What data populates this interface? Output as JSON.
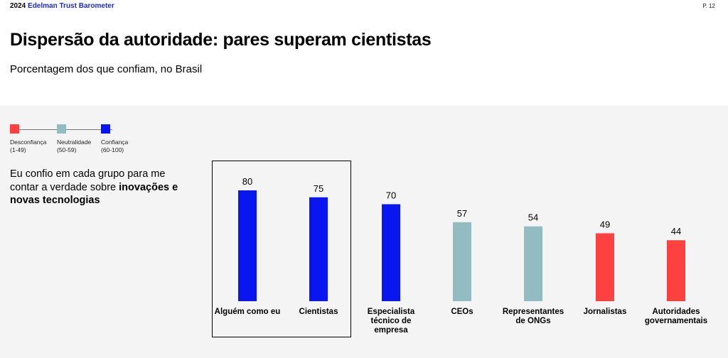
{
  "header": {
    "year": "2024",
    "brand": "Edelman Trust Barometer",
    "page": "P. 12"
  },
  "title": "Dispersão da autoridade: pares superam cientistas",
  "subtitle": "Porcentagem dos que confiam, no Brasil",
  "legend": [
    {
      "label": "Desconfiança",
      "range": "(1-49)",
      "color": "#fd4040"
    },
    {
      "label": "Neutralidade",
      "range": "(50-59)",
      "color": "#92bcc2"
    },
    {
      "label": "Confiança",
      "range": "(60-100)",
      "color": "#0a16f0"
    }
  ],
  "question": {
    "prefix": "Eu confio em cada grupo para me contar a verdade sobre ",
    "emphasis": "inovações e novas tecnologias"
  },
  "chart_data": {
    "type": "bar",
    "categories": [
      "Alguém como eu",
      "Cientistas",
      "Especialista técnico de empresa",
      "CEOs",
      "Representantes de ONGs",
      "Jornalistas",
      "Autoridades governamentais"
    ],
    "category_lines": [
      [
        "Alguém como eu"
      ],
      [
        "Cientistas"
      ],
      [
        "Especialista",
        "técnico de",
        "empresa"
      ],
      [
        "CEOs"
      ],
      [
        "Representantes",
        "de ONGs"
      ],
      [
        "Jornalistas"
      ],
      [
        "Autoridades",
        "governamentais"
      ]
    ],
    "values": [
      80,
      75,
      70,
      57,
      54,
      49,
      44
    ],
    "colors": [
      "#0a16f0",
      "#0a16f0",
      "#0a16f0",
      "#92bcc2",
      "#92bcc2",
      "#fd4040",
      "#fd4040"
    ],
    "ylim": [
      0,
      100
    ],
    "highlighted": [
      "Alguém como eu",
      "Cientistas"
    ],
    "grid": false,
    "xlabel": "",
    "ylabel": ""
  }
}
